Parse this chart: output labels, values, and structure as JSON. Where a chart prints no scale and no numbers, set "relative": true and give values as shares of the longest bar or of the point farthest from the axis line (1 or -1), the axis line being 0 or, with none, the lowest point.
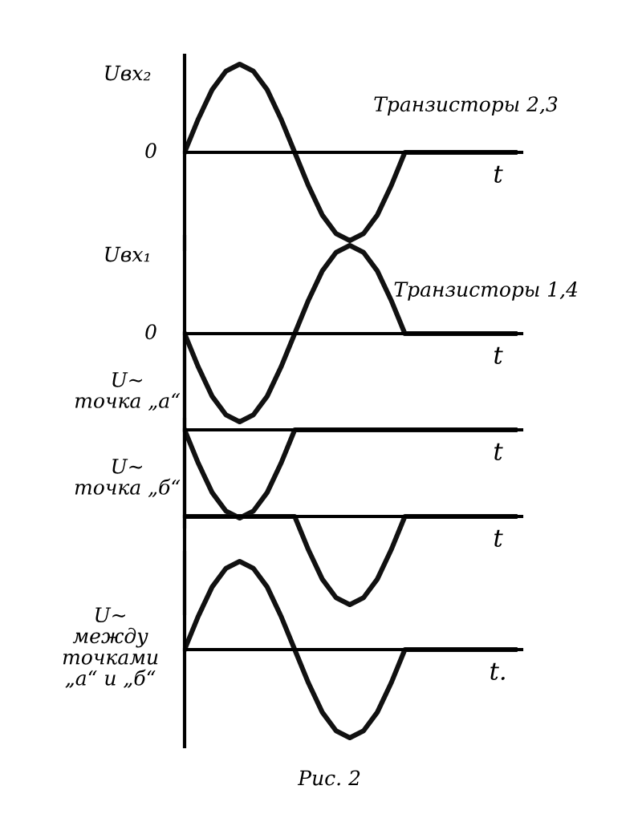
{
  "chart_data": [
    {
      "type": "line",
      "relative": true,
      "ylabel": "Uвх₂",
      "xlabel": "t",
      "annotations": [
        "Транзисторы 2,3",
        "0"
      ],
      "categories": [
        null,
        null,
        null,
        null,
        null,
        null,
        null,
        null,
        null,
        null,
        null,
        null,
        null,
        null,
        null,
        null,
        null,
        null,
        null,
        null,
        null,
        null,
        null,
        null,
        null
      ],
      "series": [
        {
          "color": "#111111",
          "values": [
            0,
            0.38,
            0.71,
            0.92,
            1,
            0.92,
            0.71,
            0.38,
            0,
            -0.38,
            -0.71,
            -0.92,
            -1,
            -0.92,
            -0.71,
            -0.38,
            0,
            0,
            0,
            0,
            0,
            0,
            0,
            0,
            0
          ]
        }
      ]
    },
    {
      "type": "line",
      "relative": true,
      "ylabel": "Uвх₁",
      "xlabel": "t",
      "annotations": [
        "Транзисторы 1,4",
        "0"
      ],
      "categories": [
        null,
        null,
        null,
        null,
        null,
        null,
        null,
        null,
        null,
        null,
        null,
        null,
        null,
        null,
        null,
        null,
        null,
        null,
        null,
        null,
        null,
        null,
        null,
        null,
        null
      ],
      "series": [
        {
          "color": "#111111",
          "values": [
            0,
            -0.38,
            -0.71,
            -0.92,
            -1,
            -0.92,
            -0.71,
            -0.38,
            0,
            0.38,
            0.71,
            0.92,
            1,
            0.92,
            0.71,
            0.38,
            0,
            0,
            0,
            0,
            0,
            0,
            0,
            0,
            0
          ]
        }
      ]
    },
    {
      "type": "line",
      "relative": true,
      "ylabel": "U~\nточка „а“",
      "xlabel": "t",
      "categories": [
        null,
        null,
        null,
        null,
        null,
        null,
        null,
        null,
        null,
        null,
        null,
        null,
        null,
        null,
        null,
        null,
        null,
        null,
        null,
        null,
        null,
        null,
        null,
        null,
        null
      ],
      "series": [
        {
          "color": "#111111",
          "values": [
            0,
            -0.38,
            -0.71,
            -0.92,
            -1,
            -0.92,
            -0.71,
            -0.38,
            0,
            0,
            0,
            0,
            0,
            0,
            0,
            0,
            0,
            0,
            0,
            0,
            0,
            0,
            0,
            0,
            0
          ]
        }
      ]
    },
    {
      "type": "line",
      "relative": true,
      "ylabel": "U~\nточка „б“",
      "xlabel": "t",
      "categories": [
        null,
        null,
        null,
        null,
        null,
        null,
        null,
        null,
        null,
        null,
        null,
        null,
        null,
        null,
        null,
        null,
        null,
        null,
        null,
        null,
        null,
        null,
        null,
        null,
        null
      ],
      "series": [
        {
          "color": "#111111",
          "values": [
            0,
            0,
            0,
            0,
            0,
            0,
            0,
            0,
            0,
            -0.38,
            -0.71,
            -0.92,
            -1,
            -0.92,
            -0.71,
            -0.38,
            0,
            0,
            0,
            0,
            0,
            0,
            0,
            0,
            0
          ]
        }
      ]
    },
    {
      "type": "line",
      "relative": true,
      "ylabel": "U~\nмежду\nточками\n„а“ и „б“",
      "xlabel": "t.",
      "annotations": [
        "Рис. 2"
      ],
      "categories": [
        null,
        null,
        null,
        null,
        null,
        null,
        null,
        null,
        null,
        null,
        null,
        null,
        null,
        null,
        null,
        null,
        null,
        null,
        null,
        null,
        null,
        null,
        null,
        null,
        null
      ],
      "series": [
        {
          "color": "#111111",
          "values": [
            0,
            0.38,
            0.71,
            0.92,
            1,
            0.92,
            0.71,
            0.38,
            0,
            -0.38,
            -0.71,
            -0.92,
            -1,
            -0.92,
            -0.71,
            -0.38,
            0,
            0,
            0,
            0,
            0,
            0,
            0,
            0,
            0
          ]
        }
      ]
    }
  ]
}
